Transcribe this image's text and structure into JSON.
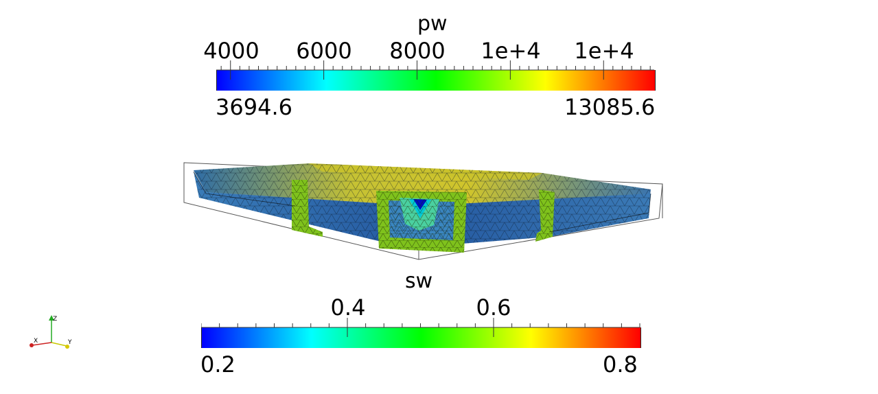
{
  "pw_legend": {
    "title": "pw",
    "tick_labels": [
      "4000",
      "6000",
      "8000",
      "1e+4",
      "1e+4"
    ],
    "range_min": "3694.6",
    "range_max": "13085.6",
    "min": 3694.6,
    "max": 13085.6,
    "major_ticks": [
      4000,
      6000,
      8000,
      10000,
      12000
    ],
    "minor_step": 200,
    "colormap": [
      "#0000ff",
      "#00ffff",
      "#00ff00",
      "#ffff00",
      "#ff0000"
    ]
  },
  "sw_legend": {
    "title": "sw",
    "tick_labels": [
      "0.4",
      "0.6"
    ],
    "range_min": "0.2",
    "range_max": "0.8",
    "min": 0.2,
    "max": 0.8,
    "major_ticks": [
      0.4,
      0.6
    ],
    "minor_step": 0.025,
    "colormap": [
      "#0000ff",
      "#00ffff",
      "#00ff00",
      "#ffff00",
      "#ff0000"
    ]
  },
  "axes_triad": {
    "x": "X",
    "y": "Y",
    "z": "Z"
  },
  "colors": {
    "mesh_body": "#2f6aa8",
    "mesh_slice": "#7fc21c",
    "mesh_top": "#c8c830",
    "bounding_box": "#555555"
  }
}
